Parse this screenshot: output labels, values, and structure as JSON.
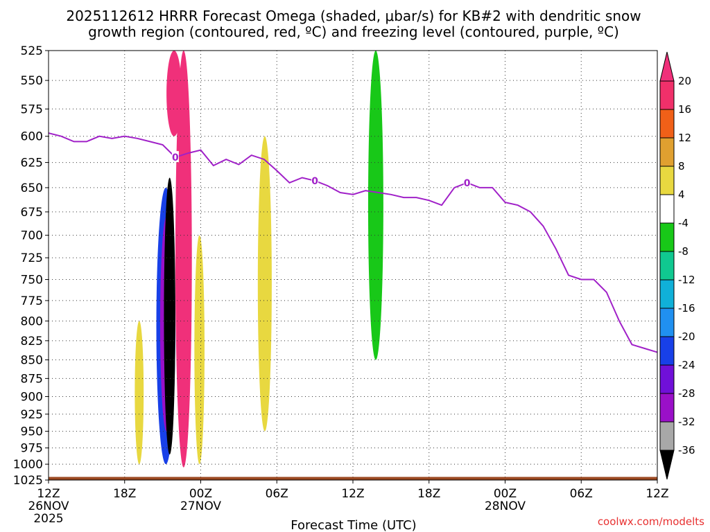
{
  "chart_data": {
    "type": "heatmap",
    "title_line1": "2025112612 HRRR Forecast Omega (shaded, μbar/s) for KB#2 with dendritic snow",
    "title_line2": "growth region (contoured, red, ºC) and freezing level (contoured, purple, ºC)",
    "xlabel": "Forecast Time (UTC)",
    "ylabel": "",
    "credit": "coolwx.com/modelts",
    "x_range_hours": [
      0,
      48
    ],
    "y_range_hpa": [
      1025,
      525
    ],
    "y_scale": "log-pressure",
    "x_ticks": [
      {
        "hour": 0,
        "label": "12Z",
        "sub1": "26NOV",
        "sub2": "2025"
      },
      {
        "hour": 6,
        "label": "18Z",
        "sub1": "",
        "sub2": ""
      },
      {
        "hour": 12,
        "label": "00Z",
        "sub1": "27NOV",
        "sub2": ""
      },
      {
        "hour": 18,
        "label": "06Z",
        "sub1": "",
        "sub2": ""
      },
      {
        "hour": 24,
        "label": "12Z",
        "sub1": "",
        "sub2": ""
      },
      {
        "hour": 30,
        "label": "18Z",
        "sub1": "",
        "sub2": ""
      },
      {
        "hour": 36,
        "label": "00Z",
        "sub1": "28NOV",
        "sub2": ""
      },
      {
        "hour": 42,
        "label": "06Z",
        "sub1": "",
        "sub2": ""
      },
      {
        "hour": 48,
        "label": "12Z",
        "sub1": "",
        "sub2": ""
      }
    ],
    "y_ticks": [
      525,
      550,
      575,
      600,
      625,
      650,
      675,
      700,
      725,
      750,
      775,
      800,
      825,
      850,
      875,
      900,
      925,
      950,
      975,
      1000,
      1025
    ],
    "colorbar": {
      "levels": [
        20,
        16,
        12,
        8,
        4,
        -4,
        -8,
        -12,
        -16,
        -20,
        -24,
        -28,
        -32,
        -36
      ],
      "bands": [
        {
          "from": 16,
          "to": 20,
          "color": "#f0306a"
        },
        {
          "from": 12,
          "to": 16,
          "color": "#f06018"
        },
        {
          "from": 8,
          "to": 12,
          "color": "#e0a030"
        },
        {
          "from": 4,
          "to": 8,
          "color": "#e8d840"
        },
        {
          "from": -4,
          "to": 4,
          "color": "#ffffff"
        },
        {
          "from": -8,
          "to": -4,
          "color": "#18c818"
        },
        {
          "from": -12,
          "to": -8,
          "color": "#10c890"
        },
        {
          "from": -16,
          "to": -12,
          "color": "#10b0d8"
        },
        {
          "from": -20,
          "to": -16,
          "color": "#2090f0"
        },
        {
          "from": -24,
          "to": -20,
          "color": "#1840e8"
        },
        {
          "from": -28,
          "to": -24,
          "color": "#7010d8"
        },
        {
          "from": -32,
          "to": -28,
          "color": "#9a10c8"
        },
        {
          "from": -36,
          "to": -32,
          "color": "#a8a8a8"
        }
      ],
      "top_extend_color": "#f0307a",
      "bottom_extend_color": "#000000"
    },
    "shaded_regions": [
      {
        "hour_start": 8.5,
        "hour_end": 10.0,
        "p_top": 650,
        "p_bottom": 1000,
        "value": -22
      },
      {
        "hour_start": 8.8,
        "hour_end": 9.8,
        "p_top": 680,
        "p_bottom": 950,
        "value": -30
      },
      {
        "hour_start": 9.1,
        "hour_end": 10.0,
        "p_top": 640,
        "p_bottom": 985,
        "value": -40
      },
      {
        "hour_start": 10.0,
        "hour_end": 11.3,
        "p_top": 525,
        "p_bottom": 1005,
        "value": 20
      },
      {
        "hour_start": 9.3,
        "hour_end": 10.5,
        "p_top": 525,
        "p_bottom": 600,
        "value": 20
      },
      {
        "hour_start": 11.5,
        "hour_end": 12.3,
        "p_top": 700,
        "p_bottom": 1000,
        "value": 6
      },
      {
        "hour_start": 6.8,
        "hour_end": 7.5,
        "p_top": 800,
        "p_bottom": 1000,
        "value": 6
      },
      {
        "hour_start": 16.5,
        "hour_end": 17.6,
        "p_top": 600,
        "p_bottom": 950,
        "value": 6
      },
      {
        "hour_start": 25.2,
        "hour_end": 26.4,
        "p_top": 525,
        "p_bottom": 850,
        "value": -8
      }
    ],
    "freezing_level": {
      "label": "0",
      "hours": [
        0,
        1,
        2,
        3,
        4,
        5,
        6,
        7,
        8,
        9,
        10,
        11,
        12,
        13,
        14,
        15,
        16,
        17,
        18,
        19,
        20,
        21,
        22,
        23,
        24,
        25,
        26,
        27,
        28,
        29,
        30,
        31,
        32,
        33,
        34,
        35,
        36,
        37,
        38,
        39,
        40,
        41,
        42,
        43,
        44,
        45,
        46,
        47,
        48
      ],
      "pressure": [
        597,
        600,
        605,
        605,
        600,
        602,
        600,
        602,
        605,
        608,
        620,
        616,
        613,
        628,
        622,
        627,
        618,
        622,
        633,
        645,
        640,
        643,
        648,
        655,
        657,
        653,
        655,
        657,
        660,
        660,
        663,
        668,
        650,
        645,
        650,
        650,
        665,
        668,
        675,
        690,
        715,
        745,
        750,
        750,
        765,
        800,
        830,
        835,
        840
      ]
    },
    "terrain_pressure_hpa": 1020
  }
}
